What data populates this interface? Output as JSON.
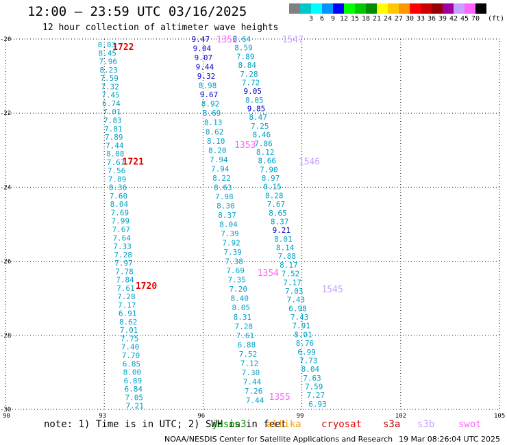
{
  "header": {
    "title": "12:00 – 23:59 UTC 03/16/2025",
    "subtitle": "12 hour collection of altimeter wave heights"
  },
  "legend": {
    "unit": "(ft)",
    "bins": [
      {
        "label": "",
        "color": "#808080"
      },
      {
        "label": "3",
        "color": "#00c8c8"
      },
      {
        "label": "6",
        "color": "#00ffff"
      },
      {
        "label": "9",
        "color": "#0096ff"
      },
      {
        "label": "12",
        "color": "#0000ff"
      },
      {
        "label": "15",
        "color": "#00ff00"
      },
      {
        "label": "18",
        "color": "#00c800"
      },
      {
        "label": "21",
        "color": "#008c00"
      },
      {
        "label": "24",
        "color": "#ffff00"
      },
      {
        "label": "27",
        "color": "#ffc800"
      },
      {
        "label": "30",
        "color": "#ff9600"
      },
      {
        "label": "33",
        "color": "#ff0000"
      },
      {
        "label": "36",
        "color": "#c80000"
      },
      {
        "label": "39",
        "color": "#960000"
      },
      {
        "label": "42",
        "color": "#a000a0"
      },
      {
        "label": "45",
        "color": "#c8a0ff"
      },
      {
        "label": "70",
        "color": "#ff64ff"
      },
      {
        "label": "",
        "color": "#000000"
      }
    ]
  },
  "map": {
    "lon_ticks": [
      "90",
      "93",
      "96",
      "99",
      "102",
      "105"
    ],
    "lat_ticks": [
      "-20",
      "-22",
      "-24",
      "-26",
      "-28",
      "-30"
    ],
    "tracks": [
      {
        "color": "#00a0c8",
        "start": [
          92.8,
          -20.15
        ],
        "end": [
          93.65,
          -29.9
        ],
        "values": [
          "8.83",
          "8.45",
          "7.96",
          "8.23",
          "7.59",
          "7.32",
          "7.45",
          "6.74",
          "7.01",
          "7.83",
          "7.81",
          "7.89",
          "7.44",
          "8.08",
          "7.67",
          "7.56",
          "7.89",
          "8.36",
          "7.60",
          "8.04",
          "7.69",
          "7.99",
          "7.67",
          "7.64",
          "7.33",
          "7.28",
          "7.97",
          "7.78",
          "7.84",
          "7.61",
          "7.28",
          "7.17",
          "6.91",
          "8.62",
          "7.01",
          "7.75",
          "7.40",
          "7.70",
          "6.85",
          "8.00",
          "6.89",
          "6.84",
          "7.05",
          "7.21"
        ],
        "times": [
          {
            "label": "1722",
            "lon": 93.25,
            "lat": -20.2,
            "color": "#e00000"
          },
          {
            "label": "1721",
            "lon": 93.55,
            "lat": -23.3,
            "color": "#e00000"
          },
          {
            "label": "1720",
            "lon": 93.95,
            "lat": -26.65,
            "color": "#e00000"
          }
        ]
      },
      {
        "color": "#00a0c8",
        "start": [
          95.65,
          -20.0
        ],
        "end": [
          97.3,
          -29.75
        ],
        "values": [
          "9.47",
          "9.04",
          "9.07",
          "9.44",
          "9.32",
          "8.98",
          "9.67",
          "8.92",
          "8.69",
          "8.13",
          "8.62",
          "8.10",
          "8.20",
          "7.94",
          "7.94",
          "8.22",
          "8.63",
          "7.98",
          "8.30",
          "8.37",
          "8.04",
          "7.39",
          "7.92",
          "7.39",
          "7.38",
          "7.69",
          "7.35",
          "7.20",
          "8.40",
          "8.05",
          "8.31",
          "7.28",
          "7.61",
          "6.88",
          "7.52",
          "7.12",
          "7.30",
          "7.44",
          "7.26",
          "7.44"
        ],
        "blue_indices": [
          0,
          1,
          2,
          3,
          4,
          6
        ],
        "times": [
          {
            "label": "1352",
            "lon": 96.4,
            "lat": -20.0,
            "color": "#ff64ff"
          },
          {
            "label": "1353",
            "lon": 96.95,
            "lat": -22.85,
            "color": "#ff64ff"
          },
          {
            "label": "1354",
            "lon": 97.65,
            "lat": -26.3,
            "color": "#ff64ff"
          },
          {
            "label": "1355",
            "lon": 98.0,
            "lat": -29.65,
            "color": "#ff64ff"
          }
        ]
      },
      {
        "color": "#00a0c8",
        "start": [
          96.9,
          -20.0
        ],
        "end": [
          99.2,
          -29.85
        ],
        "values": [
          "8.64",
          "8.59",
          "7.89",
          "8.84",
          "7.28",
          "7.72",
          "9.05",
          "8.05",
          "9.85",
          "8.47",
          "7.25",
          "8.46",
          "7.86",
          "8.12",
          "8.66",
          "7.90",
          "8.97",
          "8.15",
          "8.28",
          "7.67",
          "8.65",
          "8.37",
          "9.21",
          "8.01",
          "8.14",
          "7.88",
          "8.17",
          "7.52",
          "7.17",
          "7.03",
          "7.43",
          "6.98",
          "7.43",
          "7.91",
          "8.01",
          "8.76",
          "6.99",
          "7.73",
          "8.04",
          "7.63",
          "7.59",
          "7.27",
          "6.93"
        ],
        "blue_indices": [
          6,
          8,
          22
        ],
        "times": [
          {
            "label": "1547",
            "lon": 98.4,
            "lat": -20.0,
            "color": "#c8a0ff"
          },
          {
            "label": "1546",
            "lon": 98.9,
            "lat": -23.3,
            "color": "#c8a0ff"
          },
          {
            "label": "1545",
            "lon": 99.6,
            "lat": -26.75,
            "color": "#c8a0ff"
          }
        ]
      }
    ]
  },
  "footer": {
    "note": "note:  1) Time is in UTC; 2) SWH is in feet",
    "sources": [
      {
        "label": "jason3",
        "color": "#009000"
      },
      {
        "label": "altika",
        "color": "#ff9600"
      },
      {
        "label": "cryosat",
        "color": "#e00000"
      },
      {
        "label": "s3a",
        "color": "#b00000"
      },
      {
        "label": "s3b",
        "color": "#c8a0ff"
      },
      {
        "label": "swot",
        "color": "#ff64ff"
      }
    ],
    "credit": "NOAA/NESDIS Center for Satellite Applications and Research",
    "timestamp": "19 Mar 08:26:04 UTC 2025"
  }
}
